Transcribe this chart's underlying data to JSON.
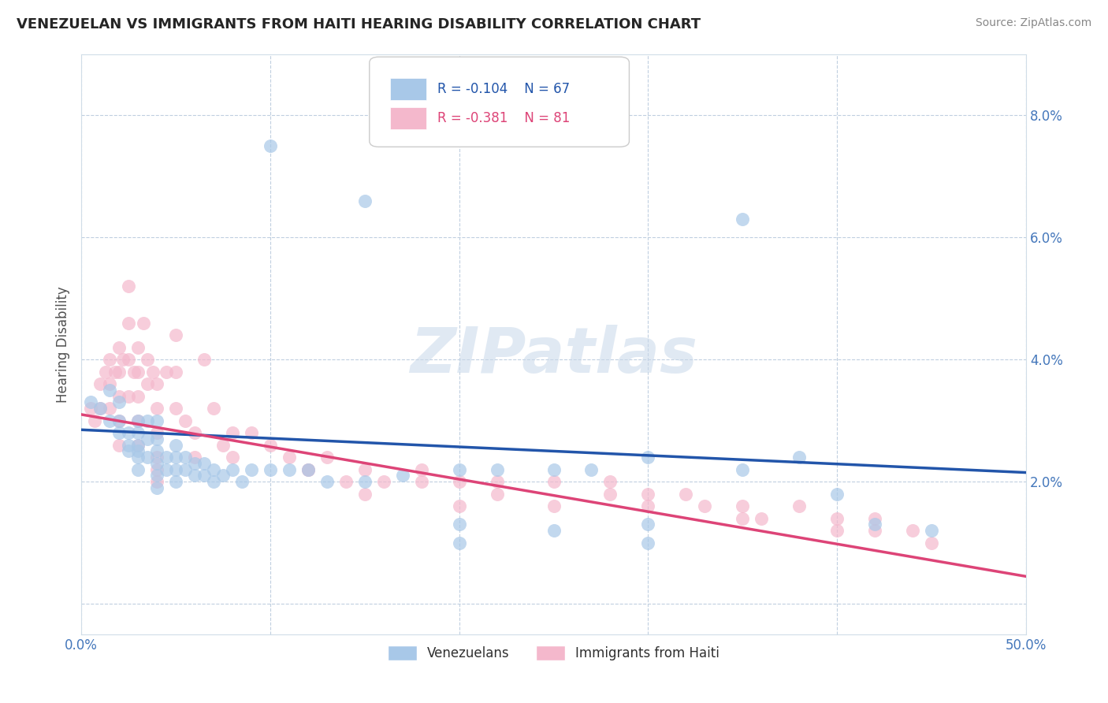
{
  "title": "VENEZUELAN VS IMMIGRANTS FROM HAITI HEARING DISABILITY CORRELATION CHART",
  "source": "Source: ZipAtlas.com",
  "ylabel": "Hearing Disability",
  "xlim": [
    0.0,
    0.5
  ],
  "ylim": [
    -0.005,
    0.09
  ],
  "yticks": [
    0.0,
    0.02,
    0.04,
    0.06,
    0.08
  ],
  "ytick_labels": [
    "",
    "2.0%",
    "4.0%",
    "6.0%",
    "8.0%"
  ],
  "legend": {
    "blue_r": "R = -0.104",
    "blue_n": "N = 67",
    "pink_r": "R = -0.381",
    "pink_n": "N = 81"
  },
  "legend_labels": [
    "Venezuelans",
    "Immigrants from Haiti"
  ],
  "blue_color": "#a8c8e8",
  "pink_color": "#f4b8cc",
  "blue_line_color": "#2255aa",
  "pink_line_color": "#dd4477",
  "watermark": "ZIPatlas",
  "background_color": "#ffffff",
  "grid_color": "#c0cfe0",
  "blue_scatter_x": [
    0.005,
    0.01,
    0.015,
    0.015,
    0.02,
    0.02,
    0.02,
    0.025,
    0.025,
    0.025,
    0.03,
    0.03,
    0.03,
    0.03,
    0.03,
    0.03,
    0.035,
    0.035,
    0.035,
    0.04,
    0.04,
    0.04,
    0.04,
    0.04,
    0.04,
    0.045,
    0.045,
    0.05,
    0.05,
    0.05,
    0.05,
    0.055,
    0.055,
    0.06,
    0.06,
    0.065,
    0.065,
    0.07,
    0.07,
    0.075,
    0.08,
    0.085,
    0.09,
    0.1,
    0.11,
    0.12,
    0.13,
    0.15,
    0.17,
    0.2,
    0.22,
    0.25,
    0.27,
    0.3,
    0.35,
    0.38,
    0.4,
    0.15,
    0.35,
    0.42,
    0.1,
    0.2,
    0.3,
    0.25,
    0.45,
    0.3,
    0.2
  ],
  "blue_scatter_y": [
    0.033,
    0.032,
    0.035,
    0.03,
    0.033,
    0.03,
    0.028,
    0.028,
    0.026,
    0.025,
    0.03,
    0.028,
    0.026,
    0.025,
    0.024,
    0.022,
    0.03,
    0.027,
    0.024,
    0.03,
    0.027,
    0.025,
    0.023,
    0.021,
    0.019,
    0.024,
    0.022,
    0.026,
    0.024,
    0.022,
    0.02,
    0.024,
    0.022,
    0.023,
    0.021,
    0.023,
    0.021,
    0.022,
    0.02,
    0.021,
    0.022,
    0.02,
    0.022,
    0.022,
    0.022,
    0.022,
    0.02,
    0.02,
    0.021,
    0.022,
    0.022,
    0.022,
    0.022,
    0.024,
    0.022,
    0.024,
    0.018,
    0.066,
    0.063,
    0.013,
    0.075,
    0.013,
    0.013,
    0.012,
    0.012,
    0.01,
    0.01
  ],
  "pink_scatter_x": [
    0.005,
    0.007,
    0.01,
    0.01,
    0.013,
    0.015,
    0.015,
    0.015,
    0.018,
    0.02,
    0.02,
    0.02,
    0.02,
    0.02,
    0.022,
    0.025,
    0.025,
    0.025,
    0.025,
    0.028,
    0.03,
    0.03,
    0.03,
    0.03,
    0.03,
    0.033,
    0.035,
    0.035,
    0.038,
    0.04,
    0.04,
    0.04,
    0.04,
    0.04,
    0.04,
    0.045,
    0.05,
    0.05,
    0.05,
    0.055,
    0.06,
    0.06,
    0.065,
    0.07,
    0.075,
    0.08,
    0.09,
    0.1,
    0.11,
    0.12,
    0.13,
    0.14,
    0.15,
    0.16,
    0.18,
    0.2,
    0.22,
    0.25,
    0.28,
    0.3,
    0.32,
    0.35,
    0.38,
    0.4,
    0.42,
    0.44,
    0.15,
    0.2,
    0.25,
    0.3,
    0.35,
    0.4,
    0.45,
    0.33,
    0.42,
    0.36,
    0.28,
    0.22,
    0.18,
    0.12,
    0.08
  ],
  "pink_scatter_y": [
    0.032,
    0.03,
    0.036,
    0.032,
    0.038,
    0.04,
    0.036,
    0.032,
    0.038,
    0.042,
    0.038,
    0.034,
    0.03,
    0.026,
    0.04,
    0.052,
    0.046,
    0.04,
    0.034,
    0.038,
    0.042,
    0.038,
    0.034,
    0.03,
    0.026,
    0.046,
    0.04,
    0.036,
    0.038,
    0.036,
    0.032,
    0.028,
    0.024,
    0.022,
    0.02,
    0.038,
    0.044,
    0.038,
    0.032,
    0.03,
    0.028,
    0.024,
    0.04,
    0.032,
    0.026,
    0.028,
    0.028,
    0.026,
    0.024,
    0.022,
    0.024,
    0.02,
    0.022,
    0.02,
    0.022,
    0.02,
    0.02,
    0.02,
    0.02,
    0.018,
    0.018,
    0.016,
    0.016,
    0.014,
    0.014,
    0.012,
    0.018,
    0.016,
    0.016,
    0.016,
    0.014,
    0.012,
    0.01,
    0.016,
    0.012,
    0.014,
    0.018,
    0.018,
    0.02,
    0.022,
    0.024
  ],
  "blue_trendline_x": [
    0.0,
    0.5
  ],
  "blue_trendline_y": [
    0.0285,
    0.0215
  ],
  "pink_trendline_x": [
    0.0,
    0.5
  ],
  "pink_trendline_y": [
    0.031,
    0.0045
  ]
}
